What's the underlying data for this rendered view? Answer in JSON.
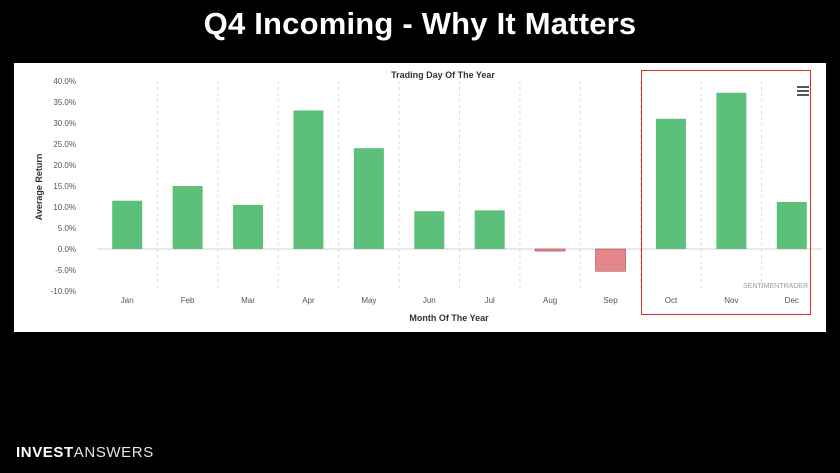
{
  "slide": {
    "title": "Q4 Incoming - Why It Matters",
    "brand_bold": "INVEST",
    "brand_light": "ANSWERS"
  },
  "chart_data": {
    "type": "bar",
    "title": "Trading Day Of The Year",
    "xlabel": "Month Of The Year",
    "ylabel": "Average Return",
    "categories": [
      "Jan",
      "Feb",
      "Mar",
      "Apr",
      "May",
      "Jun",
      "Jul",
      "Aug",
      "Sep",
      "Oct",
      "Nov",
      "Dec"
    ],
    "values": [
      11.5,
      15.0,
      10.5,
      33.0,
      24.0,
      9.0,
      9.2,
      -0.5,
      -5.3,
      31.0,
      37.2,
      11.2
    ],
    "ylim": [
      -10,
      40
    ],
    "yticks": [
      40,
      35,
      30,
      25,
      20,
      15,
      10,
      5,
      0,
      -5,
      -10
    ],
    "ytick_labels": [
      "40.0%",
      "35.0%",
      "30.0%",
      "25.0%",
      "20.0%",
      "15.0%",
      "10.0%",
      "5.0%",
      "0.0%",
      "-5.0%",
      "-10.0%"
    ],
    "positive_color": "#5cc07a",
    "negative_color": "#e3878b",
    "negative_edge_color": "#a84c55",
    "grid": "vertical dashed between months",
    "watermark": "SENTIMENTRADER",
    "highlight": {
      "categories": [
        "Oct",
        "Nov",
        "Dec"
      ],
      "color": "#e0301e"
    }
  }
}
